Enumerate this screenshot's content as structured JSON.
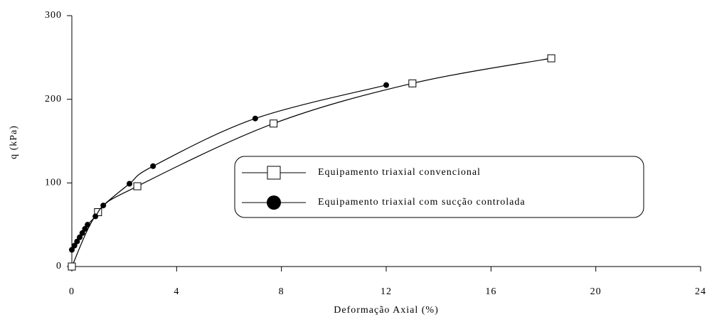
{
  "chart_data": {
    "type": "line",
    "xlabel": "Deformação Axial (%)",
    "ylabel": "q (kPa)",
    "xlim": [
      0,
      24
    ],
    "xticks": [
      0,
      4,
      8,
      12,
      16,
      20,
      24
    ],
    "ylim": [
      0,
      300
    ],
    "yticks": [
      0,
      100,
      200,
      300
    ],
    "legend": "center-right",
    "series": [
      {
        "name": "Equipamento triaxial convencional",
        "color": "#000000",
        "marker": "open-square",
        "x": [
          0,
          1.0,
          2.5,
          7.7,
          13.0,
          18.3
        ],
        "values": [
          0,
          65,
          96,
          171,
          219,
          249
        ]
      },
      {
        "name": "Equipamento triaxial com sucção controlada",
        "color": "#000000",
        "marker": "filled-circle",
        "x": [
          0,
          0.1,
          0.2,
          0.3,
          0.4,
          0.5,
          0.6,
          0.9,
          1.2,
          2.2,
          3.1,
          7.0,
          12.0
        ],
        "values": [
          20,
          25,
          30,
          35,
          40,
          45,
          50,
          60,
          73,
          99,
          120,
          177,
          217
        ]
      }
    ]
  }
}
